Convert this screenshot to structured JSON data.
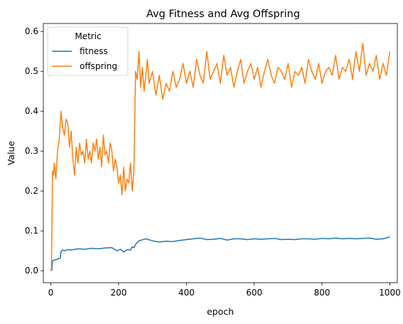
{
  "chart_data": {
    "type": "line",
    "title": "Avg Fitness and Avg Offspring",
    "xlabel": "epoch",
    "ylabel": "Value",
    "xlim": [
      -22,
      1022
    ],
    "ylim": [
      -0.03,
      0.62
    ],
    "x_ticks": [
      0,
      200,
      400,
      600,
      800,
      1000
    ],
    "x_tick_labels": [
      "0",
      "200",
      "400",
      "600",
      "800",
      "1000"
    ],
    "y_ticks": [
      0.0,
      0.1,
      0.2,
      0.3,
      0.4,
      0.5,
      0.6
    ],
    "y_tick_labels": [
      "0.0",
      "0.1",
      "0.2",
      "0.3",
      "0.4",
      "0.5",
      "0.6"
    ],
    "grid": false,
    "legend": {
      "title": "Metric",
      "position": "upper-left"
    },
    "series": [
      {
        "name": "fitness",
        "color": "#1f77b4",
        "x": [
          0,
          3,
          5,
          10,
          20,
          28,
          30,
          35,
          40,
          50,
          60,
          80,
          100,
          120,
          140,
          160,
          180,
          195,
          205,
          215,
          225,
          235,
          240,
          245,
          250,
          260,
          280,
          300,
          320,
          340,
          360,
          380,
          400,
          420,
          440,
          460,
          480,
          500,
          520,
          540,
          560,
          580,
          600,
          620,
          640,
          660,
          680,
          700,
          720,
          740,
          760,
          780,
          800,
          820,
          840,
          860,
          880,
          900,
          920,
          940,
          960,
          980,
          1000
        ],
        "values": [
          0.0,
          0.002,
          0.025,
          0.027,
          0.029,
          0.032,
          0.048,
          0.052,
          0.05,
          0.053,
          0.052,
          0.055,
          0.054,
          0.056,
          0.055,
          0.057,
          0.058,
          0.05,
          0.054,
          0.047,
          0.053,
          0.052,
          0.06,
          0.058,
          0.066,
          0.075,
          0.08,
          0.075,
          0.072,
          0.074,
          0.073,
          0.076,
          0.078,
          0.08,
          0.082,
          0.078,
          0.079,
          0.081,
          0.077,
          0.08,
          0.08,
          0.078,
          0.08,
          0.079,
          0.08,
          0.081,
          0.078,
          0.079,
          0.078,
          0.08,
          0.08,
          0.079,
          0.081,
          0.08,
          0.082,
          0.08,
          0.081,
          0.08,
          0.081,
          0.082,
          0.079,
          0.08,
          0.085
        ]
      },
      {
        "name": "offspring",
        "color": "#ff7f0e",
        "x": [
          0,
          2,
          5,
          8,
          10,
          15,
          20,
          25,
          30,
          35,
          40,
          45,
          50,
          55,
          60,
          65,
          70,
          75,
          80,
          85,
          90,
          95,
          100,
          105,
          110,
          115,
          120,
          125,
          130,
          135,
          140,
          145,
          150,
          155,
          160,
          165,
          170,
          175,
          180,
          185,
          190,
          195,
          200,
          205,
          210,
          215,
          220,
          225,
          230,
          235,
          240,
          245,
          250,
          255,
          260,
          265,
          270,
          275,
          280,
          285,
          290,
          300,
          310,
          320,
          330,
          340,
          350,
          360,
          370,
          380,
          390,
          400,
          410,
          420,
          430,
          440,
          450,
          460,
          470,
          480,
          490,
          500,
          510,
          520,
          530,
          540,
          550,
          560,
          570,
          580,
          590,
          600,
          610,
          620,
          630,
          640,
          650,
          660,
          670,
          680,
          690,
          700,
          710,
          720,
          730,
          740,
          750,
          760,
          770,
          780,
          790,
          800,
          810,
          820,
          830,
          840,
          850,
          860,
          870,
          880,
          890,
          900,
          910,
          920,
          930,
          940,
          950,
          960,
          970,
          980,
          990,
          1000
        ],
        "values": [
          0.0,
          0.005,
          0.25,
          0.24,
          0.27,
          0.23,
          0.3,
          0.33,
          0.4,
          0.36,
          0.34,
          0.38,
          0.37,
          0.31,
          0.35,
          0.28,
          0.24,
          0.31,
          0.27,
          0.32,
          0.29,
          0.3,
          0.27,
          0.33,
          0.28,
          0.3,
          0.27,
          0.32,
          0.3,
          0.33,
          0.28,
          0.31,
          0.26,
          0.34,
          0.29,
          0.3,
          0.27,
          0.32,
          0.3,
          0.25,
          0.28,
          0.26,
          0.22,
          0.24,
          0.19,
          0.26,
          0.2,
          0.23,
          0.22,
          0.27,
          0.2,
          0.25,
          0.5,
          0.48,
          0.55,
          0.46,
          0.51,
          0.45,
          0.49,
          0.53,
          0.47,
          0.5,
          0.44,
          0.49,
          0.43,
          0.47,
          0.45,
          0.5,
          0.46,
          0.48,
          0.52,
          0.47,
          0.5,
          0.46,
          0.53,
          0.49,
          0.47,
          0.55,
          0.48,
          0.5,
          0.52,
          0.47,
          0.54,
          0.49,
          0.51,
          0.46,
          0.5,
          0.53,
          0.47,
          0.5,
          0.52,
          0.48,
          0.51,
          0.46,
          0.5,
          0.53,
          0.49,
          0.47,
          0.51,
          0.5,
          0.48,
          0.52,
          0.46,
          0.5,
          0.49,
          0.51,
          0.47,
          0.53,
          0.5,
          0.48,
          0.52,
          0.47,
          0.5,
          0.51,
          0.49,
          0.54,
          0.48,
          0.51,
          0.5,
          0.53,
          0.48,
          0.55,
          0.5,
          0.57,
          0.49,
          0.52,
          0.5,
          0.54,
          0.48,
          0.52,
          0.49,
          0.55
        ]
      }
    ]
  }
}
